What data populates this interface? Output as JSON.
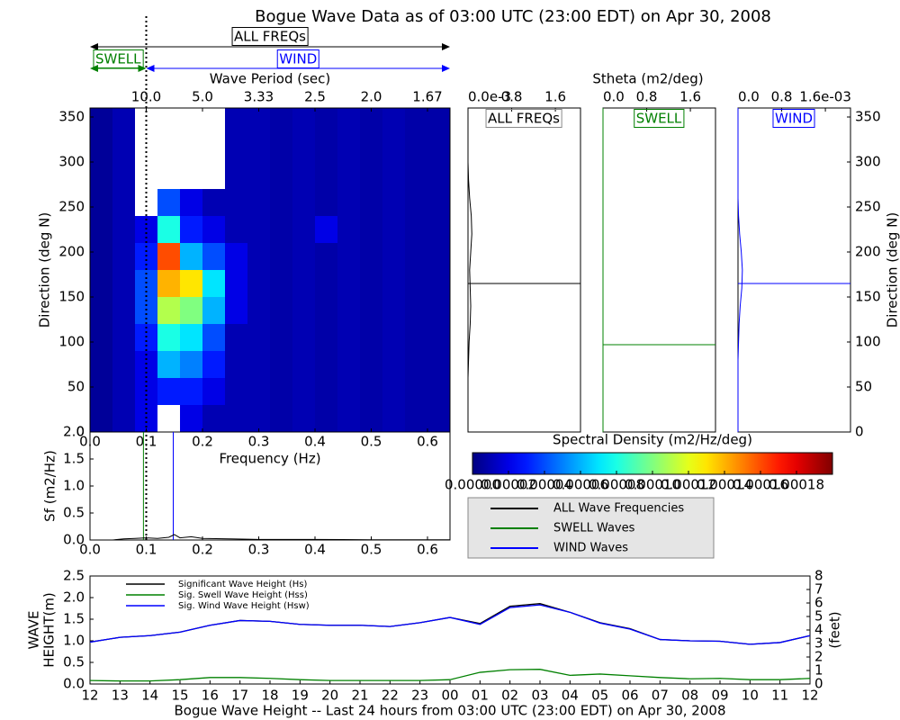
{
  "title": "Bogue Wave Data as of 03:00 UTC (23:00 EDT) on Apr 30, 2008",
  "chart_data": [
    {
      "type": "heatmap",
      "xlabel": "Frequency (Hz)",
      "ylabel": "Direction (deg N)",
      "x2label": "Wave Period (sec)",
      "xlim": [
        0,
        0.64
      ],
      "ylim": [
        0,
        360
      ],
      "xticks": [
        {
          "value": 0,
          "label": "0.0"
        },
        0.1,
        0.2,
        0.3,
        0.4,
        0.5,
        0.6
      ],
      "yticks": [
        0,
        50,
        100,
        150,
        200,
        250,
        300,
        350
      ],
      "x2ticks": [
        {
          "value": 0.1,
          "label": "10.0"
        },
        {
          "value": 0.2,
          "label": "5.0"
        },
        {
          "value": 0.3,
          "label": "3.33"
        },
        {
          "value": 0.4,
          "label": "2.5"
        },
        {
          "value": 0.5,
          "label": "2.0"
        },
        {
          "value": 0.6,
          "label": "1.67"
        }
      ],
      "x_edges": [
        0,
        0.04,
        0.08,
        0.12,
        0.16,
        0.2,
        0.24,
        0.28,
        0.32,
        0.36,
        0.4,
        0.44,
        0.48,
        0.52,
        0.56,
        0.6,
        0.64
      ],
      "y_edges": [
        0,
        30,
        60,
        90,
        120,
        150,
        180,
        210,
        240,
        270,
        300,
        330,
        360
      ],
      "values": [
        [
          5e-06,
          1e-05,
          2e-05,
          null,
          2e-05,
          1e-05,
          1e-05,
          1e-05,
          8e-06,
          1e-05,
          8e-06,
          1e-05,
          8e-06,
          1e-05,
          8e-06,
          8e-06
        ],
        [
          5e-06,
          1e-05,
          2e-05,
          3e-05,
          3e-05,
          2e-05,
          1e-05,
          1e-05,
          8e-06,
          1e-05,
          8e-06,
          1e-05,
          8e-06,
          1e-05,
          8e-06,
          8e-06
        ],
        [
          5e-06,
          1e-05,
          2e-05,
          6e-05,
          5e-05,
          3e-05,
          1e-05,
          1e-05,
          8e-06,
          1e-05,
          8e-06,
          1e-05,
          8e-06,
          1e-05,
          8e-06,
          8e-06
        ],
        [
          5e-06,
          1e-05,
          3e-05,
          8e-05,
          7e-05,
          4e-05,
          1e-05,
          1e-05,
          8e-06,
          1e-05,
          8e-06,
          1e-05,
          8e-06,
          1e-05,
          8e-06,
          8e-06
        ],
        [
          5e-06,
          1e-05,
          4e-05,
          0.00011,
          0.0001,
          6e-05,
          2e-05,
          1e-05,
          8e-06,
          1e-05,
          8e-06,
          1e-05,
          8e-06,
          1e-05,
          8e-06,
          8e-06
        ],
        [
          5e-06,
          1e-05,
          4e-05,
          0.00014,
          0.00013,
          7e-05,
          2e-05,
          1e-05,
          8e-06,
          1e-05,
          8e-06,
          1e-05,
          8e-06,
          1e-05,
          8e-06,
          8e-06
        ],
        [
          5e-06,
          1e-05,
          3e-05,
          0.00016,
          6e-05,
          4e-05,
          2e-05,
          1e-05,
          8e-06,
          1e-05,
          8e-06,
          1e-05,
          8e-06,
          1e-05,
          8e-06,
          8e-06
        ],
        [
          5e-06,
          1e-05,
          2e-05,
          8e-05,
          3e-05,
          2e-05,
          1e-05,
          1e-05,
          8e-06,
          1e-05,
          2e-05,
          1e-05,
          8e-06,
          1e-05,
          8e-06,
          8e-06
        ],
        [
          5e-06,
          1e-05,
          null,
          4e-05,
          2e-05,
          1e-05,
          1e-05,
          1e-05,
          8e-06,
          1e-05,
          8e-06,
          1e-05,
          8e-06,
          1e-05,
          8e-06,
          8e-06
        ],
        [
          5e-06,
          1e-05,
          null,
          null,
          null,
          null,
          1e-05,
          1e-05,
          8e-06,
          1e-05,
          8e-06,
          1e-05,
          8e-06,
          1e-05,
          8e-06,
          8e-06
        ],
        [
          5e-06,
          1e-05,
          null,
          null,
          null,
          null,
          1e-05,
          1e-05,
          8e-06,
          1e-05,
          8e-06,
          1e-05,
          8e-06,
          1e-05,
          8e-06,
          8e-06
        ],
        [
          5e-06,
          1e-05,
          null,
          null,
          null,
          null,
          1e-05,
          1e-05,
          8e-06,
          1e-05,
          8e-06,
          1e-05,
          8e-06,
          1e-05,
          8e-06,
          8e-06
        ]
      ],
      "colormap": "jet",
      "clim": [
        0,
        0.0002
      ],
      "colorbar_label": "Spectral Density (m2/Hz/deg)",
      "colorbar_ticks": [
        {
          "value": 0,
          "label": "0.00000"
        },
        {
          "value": 2e-05,
          "label": "0.00002"
        },
        {
          "value": 4e-05,
          "label": "0.00004"
        },
        {
          "value": 6e-05,
          "label": "0.00006"
        },
        {
          "value": 8e-05,
          "label": "0.00008"
        },
        {
          "value": 0.0001,
          "label": "0.00010"
        },
        {
          "value": 0.00012,
          "label": "0.00012"
        },
        {
          "value": 0.00014,
          "label": "0.00014"
        },
        {
          "value": 0.00016,
          "label": "0.00016"
        },
        {
          "value": 0.00018,
          "label": "0.00018"
        }
      ],
      "period_marker": 0.1,
      "annotations": [
        {
          "text": "ALL FREQs",
          "color": "#000000",
          "range": [
            0,
            0.64
          ]
        },
        {
          "text": "SWELL",
          "color": "#008000",
          "range": [
            0,
            0.1
          ]
        },
        {
          "text": "WIND",
          "color": "#0000ff",
          "range": [
            0.1,
            0.64
          ]
        }
      ]
    },
    {
      "type": "line",
      "title": "ALL FREQs",
      "color": "#000000",
      "xlim": [
        0,
        2.06
      ],
      "ylim": [
        0,
        360
      ],
      "xticks": [
        {
          "value": 0,
          "label": "0.0e-3"
        },
        0.8,
        1.6
      ],
      "directions": [
        0,
        20,
        40,
        60,
        80,
        100,
        120,
        140,
        160,
        180,
        200,
        220,
        240,
        260,
        280,
        300,
        320,
        340,
        360
      ],
      "values": [
        0,
        0,
        0,
        0,
        0.01,
        0.02,
        0.04,
        0.05,
        0.04,
        0.03,
        0.05,
        0.07,
        0.06,
        0.03,
        0.01,
        0,
        0,
        0,
        0
      ],
      "mean_direction": 165
    },
    {
      "type": "line",
      "title": "SWELL",
      "color": "#008000",
      "xlabel": "Stheta (m2/deg)",
      "xlim": [
        0,
        2.06
      ],
      "ylim": [
        0,
        360
      ],
      "xticks": [
        {
          "value": 0,
          "label": "0.0"
        },
        0.8,
        1.6
      ],
      "directions": [
        0,
        20,
        40,
        60,
        80,
        100,
        120,
        140,
        160,
        180,
        200,
        220,
        240,
        260,
        280,
        300,
        320,
        340,
        360
      ],
      "values": [
        0,
        0,
        0,
        0,
        0,
        0,
        0,
        0,
        0,
        0,
        0,
        0,
        0,
        0,
        0,
        0,
        0,
        0,
        0
      ],
      "mean_direction": 97
    },
    {
      "type": "line",
      "title": "WIND",
      "color": "#0000ff",
      "ylabel": "Direction (deg N)",
      "xlim": [
        0,
        2.06
      ],
      "ylim": [
        0,
        360
      ],
      "xticks": [
        {
          "value": 0,
          "label": "0.0"
        },
        0.8,
        {
          "value": 1.6,
          "label": "1.6e-03"
        }
      ],
      "yticks": [
        0,
        50,
        100,
        150,
        200,
        250,
        300,
        350
      ],
      "directions": [
        0,
        20,
        40,
        60,
        80,
        100,
        120,
        140,
        160,
        180,
        200,
        220,
        240,
        260,
        280,
        300,
        320,
        340,
        360
      ],
      "values": [
        0,
        0,
        0,
        0,
        0,
        0.01,
        0.02,
        0.04,
        0.07,
        0.08,
        0.06,
        0.03,
        0.01,
        0,
        0,
        0,
        0,
        0,
        0
      ],
      "mean_direction": 165
    },
    {
      "type": "line",
      "ylabel": "Sf (m2/Hz)",
      "xlabel": "Frequency (Hz)",
      "xlim": [
        0,
        0.64
      ],
      "ylim": [
        0,
        2.0
      ],
      "xticks": [
        {
          "value": 0,
          "label": "0.0"
        },
        0.1,
        0.2,
        0.3,
        0.4,
        0.5,
        0.6
      ],
      "yticks": [
        {
          "value": 0,
          "label": "0.0"
        },
        0.5,
        {
          "value": 1,
          "label": "1.0"
        },
        1.5,
        {
          "value": 2,
          "label": "2.0"
        }
      ],
      "x": [
        0,
        0.04,
        0.06,
        0.08,
        0.1,
        0.12,
        0.14,
        0.15,
        0.16,
        0.18,
        0.2,
        0.25,
        0.3,
        0.4,
        0.5,
        0.64
      ],
      "values": [
        0,
        0,
        0.02,
        0.03,
        0.04,
        0.03,
        0.05,
        0.1,
        0.04,
        0.06,
        0.03,
        0.02,
        0.01,
        0.01,
        0.005,
        0.005
      ],
      "color": "#000000",
      "peaks": [
        {
          "value": 0.095,
          "color": "#008000"
        },
        {
          "value": 0.148,
          "color": "#0000ff"
        }
      ],
      "legend": [
        {
          "name": "ALL Wave Frequencies",
          "color": "#000000"
        },
        {
          "name": "SWELL Waves",
          "color": "#008000"
        },
        {
          "name": "WIND Waves",
          "color": "#0000ff"
        }
      ]
    },
    {
      "type": "line",
      "xlabel": "Bogue Wave Height -- Last 24 hours from 03:00 UTC (23:00 EDT) on Apr 30, 2008",
      "ylabel": [
        "WAVE",
        "HEIGHT(m)"
      ],
      "y2label": "(feet)",
      "categories": [
        "12",
        "13",
        "14",
        "15",
        "16",
        "17",
        "18",
        "19",
        "20",
        "21",
        "22",
        "23",
        "00",
        "01",
        "02",
        "03",
        "04",
        "05",
        "06",
        "07",
        "08",
        "09",
        "10",
        "11",
        "12"
      ],
      "ylim": [
        0,
        2.5
      ],
      "yticks": [
        {
          "value": 0,
          "label": "0.0"
        },
        0.5,
        {
          "value": 1,
          "label": "1.0"
        },
        1.5,
        {
          "value": 2,
          "label": "2.0"
        },
        2.5
      ],
      "y2lim": [
        0,
        8
      ],
      "y2ticks": [
        0,
        1,
        2,
        3,
        4,
        5,
        6,
        7,
        8
      ],
      "series": [
        {
          "name": "Significant Wave Height (Hs)",
          "color": "#000000",
          "values": [
            0.97,
            1.08,
            1.12,
            1.2,
            1.36,
            1.47,
            1.45,
            1.38,
            1.36,
            1.36,
            1.33,
            1.42,
            1.54,
            1.4,
            1.8,
            1.86,
            1.66,
            1.42,
            1.28,
            1.03,
            1.0,
            0.99,
            0.92,
            0.96,
            1.12
          ]
        },
        {
          "name": "Sig. Swell Wave Height (Hss)",
          "color": "#008000",
          "values": [
            0.08,
            0.07,
            0.07,
            0.1,
            0.15,
            0.15,
            0.13,
            0.1,
            0.08,
            0.08,
            0.08,
            0.08,
            0.1,
            0.27,
            0.33,
            0.34,
            0.2,
            0.23,
            0.19,
            0.15,
            0.12,
            0.13,
            0.1,
            0.1,
            0.13
          ]
        },
        {
          "name": "Sig. Wind Wave Height (Hsw)",
          "color": "#0000ff",
          "values": [
            0.97,
            1.08,
            1.12,
            1.2,
            1.36,
            1.47,
            1.45,
            1.38,
            1.36,
            1.36,
            1.33,
            1.42,
            1.54,
            1.38,
            1.77,
            1.83,
            1.66,
            1.41,
            1.27,
            1.03,
            1.0,
            0.99,
            0.92,
            0.96,
            1.12
          ]
        }
      ]
    }
  ]
}
